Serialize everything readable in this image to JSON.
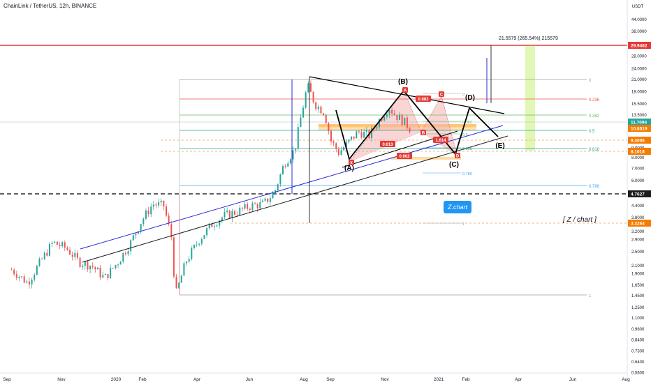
{
  "header": {
    "title": "ChainLink / TetherUS, 12h, BINANCE"
  },
  "watermark": "[ Z / chart ]",
  "logo_label": "Z.chart",
  "measure_label": "21.5579 (265.54%) 215579",
  "wave_labels": [
    "(A)",
    "(B)",
    "(C)",
    "(D)",
    "(E)"
  ],
  "harmonic": {
    "points": [
      "X",
      "A",
      "B",
      "C",
      "D"
    ],
    "ratios": [
      "0.883",
      "0.613",
      "1.614",
      "0.902"
    ]
  },
  "fib_upper": {
    "levels": [
      "0",
      "0.236",
      "0.382",
      "0.5",
      "0.618",
      "0.786",
      "1"
    ]
  },
  "fib_lower": {
    "levels": [
      "0",
      "0.382",
      "0.5",
      "0.618",
      "0.786",
      "1"
    ]
  },
  "colors": {
    "up": "#26a69a",
    "down": "#ef5350",
    "pattern": "#f5b3b3",
    "resistance": "#e53935",
    "target": "#c6f07a",
    "support": "#1c1c1c",
    "channel": "#2929d6"
  },
  "chart_data": {
    "type": "candlestick",
    "symbol": "ChainLink / TetherUS",
    "timeframe": "12h",
    "exchange": "BINANCE",
    "price_axis": {
      "scale": "log",
      "unit": "USDT",
      "ticks": [
        "44.0000",
        "38.0000",
        "32.0000",
        "28.0000",
        "24.0000",
        "21.0000",
        "18.0000",
        "15.5000",
        "13.5000",
        "12.0000",
        "10.0000",
        "9.0000",
        "8.0000",
        "7.0000",
        "6.0000",
        "5.2000",
        "4.4000",
        "3.8000",
        "3.2000",
        "2.9000",
        "2.5000",
        "2.1000",
        "1.9000",
        "1.6500",
        "1.4500",
        "1.2500",
        "1.1000",
        "0.9600",
        "0.8400",
        "0.7300",
        "0.6400",
        "0.5600"
      ],
      "range": [
        0.52,
        56
      ]
    },
    "time_axis": {
      "ticks": [
        "Sep",
        "Nov",
        "2020",
        "Feb",
        "Apr",
        "Jun",
        "Aug",
        "Sep",
        "Nov",
        "2021",
        "Feb",
        "Apr",
        "Jun",
        "Aug"
      ]
    },
    "price_badges": [
      {
        "label": "29.9462",
        "color": "#e53935"
      },
      {
        "label": "11.7094",
        "color": "#26a69a"
      },
      {
        "label": "10.8519",
        "color": "#f57c00"
      },
      {
        "label": "9.4006",
        "color": "#f57c00"
      },
      {
        "label": "8.1018",
        "color": "#f57c00"
      },
      {
        "label": "4.7627",
        "color": "#1c1c1c"
      },
      {
        "label": "3.3264",
        "color": "#f57c00"
      }
    ],
    "series": [
      {
        "name": "",
        "points": [
          [
            "2019-09-01",
            2.0
          ],
          [
            "2019-09-20",
            1.7
          ],
          [
            "2019-10-05",
            2.2
          ],
          [
            "2019-10-20",
            2.8
          ],
          [
            "2019-11-05",
            2.6
          ],
          [
            "2019-11-20",
            2.2
          ],
          [
            "2019-12-05",
            2.1
          ],
          [
            "2019-12-20",
            1.8
          ],
          [
            "2020-01-05",
            2.2
          ],
          [
            "2020-01-20",
            2.8
          ],
          [
            "2020-02-01",
            3.6
          ],
          [
            "2020-02-15",
            4.5
          ],
          [
            "2020-02-28",
            4.4
          ],
          [
            "2020-03-08",
            3.0
          ],
          [
            "2020-03-13",
            1.45
          ],
          [
            "2020-03-25",
            2.2
          ],
          [
            "2020-04-10",
            2.9
          ],
          [
            "2020-04-25",
            3.5
          ],
          [
            "2020-05-10",
            3.9
          ],
          [
            "2020-05-25",
            4.1
          ],
          [
            "2020-06-10",
            4.4
          ],
          [
            "2020-06-25",
            4.5
          ],
          [
            "2020-07-08",
            5.2
          ],
          [
            "2020-07-20",
            7.5
          ],
          [
            "2020-08-01",
            8.8
          ],
          [
            "2020-08-08",
            13.0
          ],
          [
            "2020-08-16",
            19.5
          ],
          [
            "2020-08-25",
            15.5
          ],
          [
            "2020-09-05",
            14.0
          ],
          [
            "2020-09-13",
            9.8
          ],
          [
            "2020-09-22",
            8.5
          ],
          [
            "2020-10-02",
            9.5
          ],
          [
            "2020-10-15",
            11.0
          ],
          [
            "2020-10-28",
            10.5
          ],
          [
            "2020-11-08",
            12.5
          ],
          [
            "2020-11-20",
            15.0
          ],
          [
            "2020-11-28",
            13.5
          ],
          [
            "2020-12-08",
            12.5
          ],
          [
            "2020-12-15",
            11.5
          ]
        ]
      }
    ]
  }
}
